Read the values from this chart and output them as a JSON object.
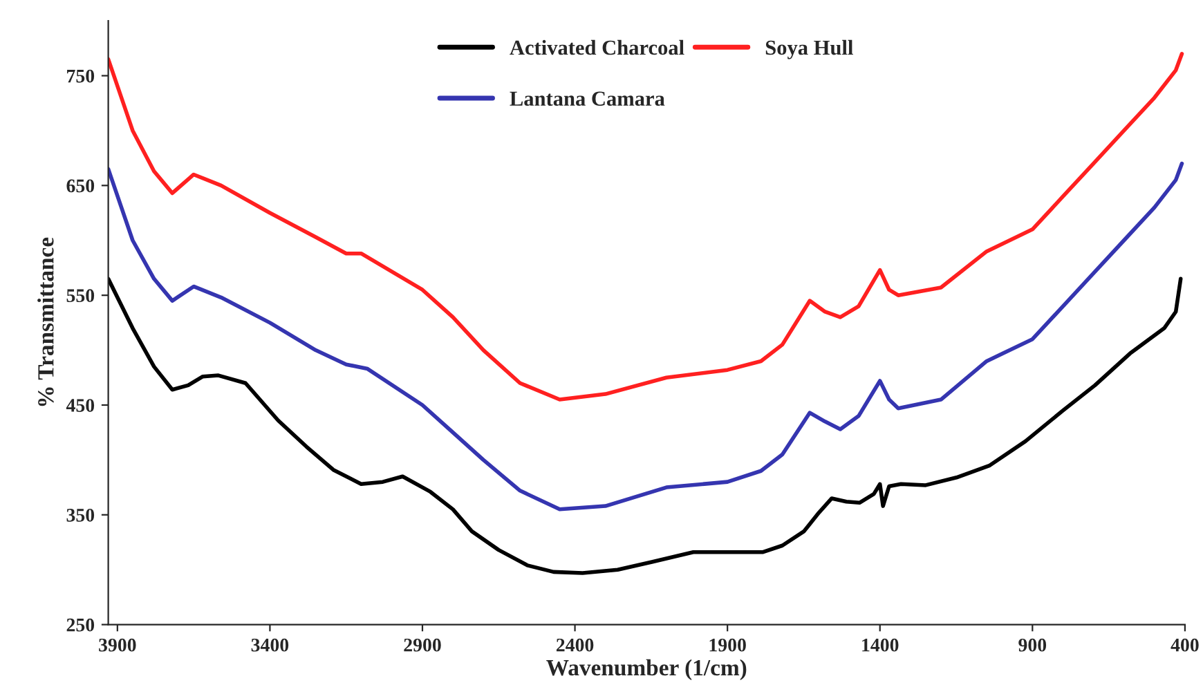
{
  "chart_data": {
    "type": "line",
    "xlabel": "Wavenumber (1/cm)",
    "ylabel": "% Transmittance",
    "xlim": [
      3930,
      400
    ],
    "ylim": [
      250,
      800
    ],
    "xticks": [
      3900,
      3400,
      2900,
      2400,
      1900,
      1400,
      900,
      400
    ],
    "yticks": [
      250,
      350,
      450,
      550,
      650,
      750
    ],
    "grid": false,
    "legend": "top",
    "marker": "none",
    "line_style": "solid",
    "series": [
      {
        "name": "Activated Charcoal",
        "color": "#000000",
        "x": [
          3930,
          3850,
          3780,
          3720,
          3668,
          3620,
          3569,
          3480,
          3373,
          3280,
          3192,
          3101,
          3030,
          2965,
          2874,
          2800,
          2738,
          2650,
          2556,
          2470,
          2375,
          2260,
          2148,
          2012,
          1900,
          1785,
          1720,
          1649,
          1600,
          1558,
          1510,
          1467,
          1420,
          1400,
          1390,
          1370,
          1331,
          1250,
          1149,
          1040,
          923,
          800,
          695,
          580,
          468,
          430,
          414
        ],
        "values": [
          565,
          520,
          485,
          464,
          468,
          476,
          477,
          470,
          436,
          412,
          391,
          378,
          380,
          385,
          371,
          355,
          335,
          318,
          304,
          298,
          297,
          300,
          307,
          316,
          316,
          316,
          322,
          335,
          352,
          365,
          362,
          361,
          369,
          378,
          358,
          376,
          378,
          377,
          384,
          395,
          417,
          445,
          468,
          497,
          520,
          535,
          565
        ]
      },
      {
        "name": "Lantana Camara",
        "color": "#3535b0",
        "x": [
          3930,
          3850,
          3780,
          3720,
          3650,
          3560,
          3400,
          3250,
          3150,
          3080,
          2900,
          2800,
          2700,
          2580,
          2450,
          2300,
          2100,
          1900,
          1790,
          1720,
          1630,
          1580,
          1530,
          1470,
          1400,
          1370,
          1340,
          1200,
          1050,
          900,
          800,
          700,
          600,
          500,
          430,
          410
        ],
        "values": [
          665,
          600,
          565,
          545,
          558,
          548,
          525,
          500,
          487,
          483,
          450,
          425,
          400,
          372,
          355,
          358,
          375,
          380,
          390,
          405,
          443,
          435,
          428,
          440,
          472,
          455,
          447,
          455,
          490,
          510,
          540,
          570,
          600,
          630,
          655,
          670
        ]
      },
      {
        "name": "Soya Hull",
        "color": "#ff2020",
        "x": [
          3930,
          3850,
          3780,
          3720,
          3650,
          3560,
          3400,
          3250,
          3150,
          3100,
          2900,
          2800,
          2700,
          2580,
          2450,
          2300,
          2100,
          1900,
          1790,
          1720,
          1630,
          1580,
          1530,
          1470,
          1400,
          1370,
          1340,
          1200,
          1050,
          900,
          800,
          700,
          600,
          500,
          430,
          410
        ],
        "values": [
          765,
          700,
          663,
          643,
          660,
          650,
          625,
          603,
          588,
          588,
          555,
          530,
          500,
          470,
          455,
          460,
          475,
          482,
          490,
          505,
          545,
          535,
          530,
          540,
          573,
          555,
          550,
          557,
          590,
          610,
          640,
          670,
          700,
          730,
          755,
          770
        ]
      }
    ]
  }
}
